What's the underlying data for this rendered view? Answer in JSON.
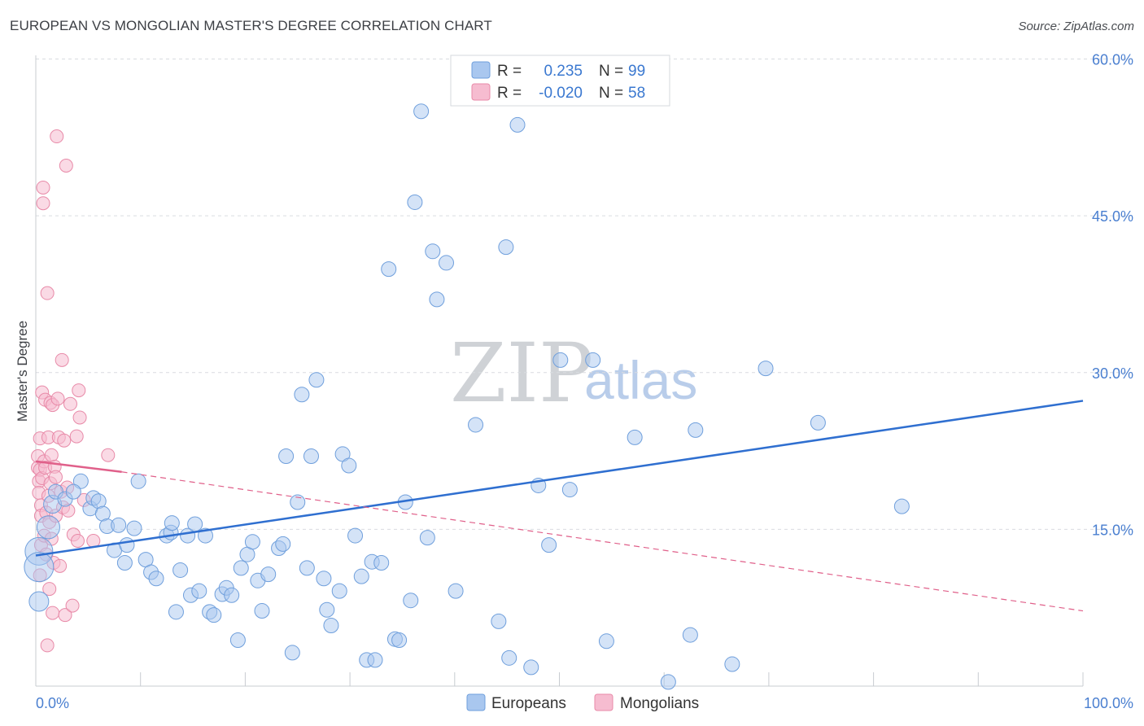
{
  "title": "EUROPEAN VS MONGOLIAN MASTER'S DEGREE CORRELATION CHART",
  "source": "Source: ZipAtlas.com",
  "colors": {
    "blue_fill": "#a9c7ef",
    "blue_stroke": "#6f9fdc",
    "blue_line": "#2f6fd0",
    "pink_fill": "#f6bcd0",
    "pink_stroke": "#e88aa8",
    "pink_line": "#e0608a",
    "grid": "#d9dce0",
    "tick_text": "#4a7fd0"
  },
  "legend": {
    "rows": [
      {
        "r_label": "R =",
        "r_value": "0.235",
        "n_label": "N =",
        "n_value": "99",
        "series": "Europeans"
      },
      {
        "r_label": "R =",
        "r_value": "-0.020",
        "n_label": "N =",
        "n_value": "58",
        "series": "Mongolians"
      }
    ]
  },
  "watermark": {
    "zip": "ZIP",
    "atlas": "atlas"
  },
  "chart_data": {
    "type": "scatter",
    "title": "EUROPEAN VS MONGOLIAN MASTER'S DEGREE CORRELATION CHART",
    "xlabel": "",
    "ylabel": "Master's Degree",
    "xlim": [
      0,
      100
    ],
    "ylim": [
      0,
      63
    ],
    "y_ticks": [
      15,
      30,
      45,
      60
    ],
    "y_tick_labels": [
      "15.0%",
      "30.0%",
      "45.0%",
      "60.0%"
    ],
    "x_tick_labels": [
      "0.0%",
      "100.0%"
    ],
    "legend_position": "bottom",
    "series": [
      {
        "name": "Europeans",
        "r": 0.235,
        "n": 99,
        "trend": {
          "x": [
            0,
            100
          ],
          "y": [
            12.5,
            27.3
          ],
          "style": "solid"
        },
        "points": [
          [
            0.3,
            12.9
          ],
          [
            0.3,
            11.4
          ],
          [
            0.3,
            8.1
          ],
          [
            1.2,
            15.2
          ],
          [
            1.6,
            17.4
          ],
          [
            1.9,
            18.6
          ],
          [
            2.8,
            17.9
          ],
          [
            4.3,
            19.6
          ],
          [
            3.6,
            18.6
          ],
          [
            5.2,
            17.0
          ],
          [
            5.5,
            18.0
          ],
          [
            6.0,
            17.7
          ],
          [
            6.4,
            16.5
          ],
          [
            6.8,
            15.3
          ],
          [
            7.5,
            13.0
          ],
          [
            7.9,
            15.4
          ],
          [
            8.5,
            11.8
          ],
          [
            8.7,
            13.5
          ],
          [
            9.4,
            15.1
          ],
          [
            9.8,
            19.6
          ],
          [
            10.5,
            12.1
          ],
          [
            11.0,
            10.9
          ],
          [
            11.5,
            10.3
          ],
          [
            12.5,
            14.4
          ],
          [
            12.9,
            14.7
          ],
          [
            13.0,
            15.6
          ],
          [
            13.4,
            7.1
          ],
          [
            13.8,
            11.1
          ],
          [
            14.5,
            14.4
          ],
          [
            14.8,
            8.7
          ],
          [
            15.2,
            15.5
          ],
          [
            15.6,
            9.1
          ],
          [
            16.2,
            14.4
          ],
          [
            16.6,
            7.1
          ],
          [
            17.0,
            6.8
          ],
          [
            17.8,
            8.8
          ],
          [
            18.2,
            9.4
          ],
          [
            18.7,
            8.7
          ],
          [
            19.3,
            4.4
          ],
          [
            19.6,
            11.3
          ],
          [
            20.2,
            12.6
          ],
          [
            20.7,
            13.8
          ],
          [
            21.2,
            10.1
          ],
          [
            21.6,
            7.2
          ],
          [
            22.2,
            10.7
          ],
          [
            23.2,
            13.2
          ],
          [
            23.6,
            13.6
          ],
          [
            23.9,
            22.0
          ],
          [
            24.5,
            3.2
          ],
          [
            25.0,
            17.6
          ],
          [
            25.4,
            27.9
          ],
          [
            25.9,
            11.3
          ],
          [
            26.3,
            22.0
          ],
          [
            26.8,
            29.3
          ],
          [
            27.5,
            10.3
          ],
          [
            27.8,
            7.3
          ],
          [
            28.2,
            5.8
          ],
          [
            29.0,
            9.1
          ],
          [
            29.3,
            22.2
          ],
          [
            29.9,
            21.1
          ],
          [
            30.5,
            14.4
          ],
          [
            31.1,
            10.5
          ],
          [
            31.6,
            2.5
          ],
          [
            32.1,
            11.9
          ],
          [
            32.4,
            2.5
          ],
          [
            33.0,
            11.8
          ],
          [
            33.7,
            39.9
          ],
          [
            34.3,
            4.5
          ],
          [
            34.7,
            4.4
          ],
          [
            35.3,
            17.6
          ],
          [
            35.8,
            8.2
          ],
          [
            36.2,
            46.3
          ],
          [
            36.8,
            55.0
          ],
          [
            37.4,
            14.2
          ],
          [
            37.9,
            41.6
          ],
          [
            38.3,
            37.0
          ],
          [
            39.2,
            40.5
          ],
          [
            40.1,
            9.1
          ],
          [
            42.0,
            25.0
          ],
          [
            44.2,
            6.2
          ],
          [
            44.9,
            42.0
          ],
          [
            45.2,
            2.7
          ],
          [
            46.0,
            53.7
          ],
          [
            47.3,
            1.8
          ],
          [
            48.0,
            19.2
          ],
          [
            49.0,
            13.5
          ],
          [
            50.1,
            31.2
          ],
          [
            51.0,
            18.8
          ],
          [
            53.2,
            31.2
          ],
          [
            54.2,
            58.5
          ],
          [
            54.5,
            4.3
          ],
          [
            57.2,
            23.8
          ],
          [
            60.4,
            0.4
          ],
          [
            62.5,
            4.9
          ],
          [
            63.0,
            24.5
          ],
          [
            66.5,
            2.1
          ],
          [
            69.7,
            30.4
          ],
          [
            74.7,
            25.2
          ],
          [
            82.7,
            17.2
          ]
        ]
      },
      {
        "name": "Mongolians",
        "r": -0.02,
        "n": 58,
        "trend_solid": {
          "x": [
            0,
            8.2
          ],
          "y": [
            21.5,
            20.5
          ]
        },
        "trend_dashed": {
          "x": [
            8.2,
            100
          ],
          "y": [
            20.5,
            7.2
          ]
        },
        "points": [
          [
            0.2,
            22.0
          ],
          [
            0.2,
            20.9
          ],
          [
            0.3,
            19.6
          ],
          [
            0.3,
            18.5
          ],
          [
            0.4,
            23.7
          ],
          [
            0.4,
            20.7
          ],
          [
            0.5,
            17.3
          ],
          [
            0.5,
            16.3
          ],
          [
            0.5,
            13.5
          ],
          [
            0.6,
            28.1
          ],
          [
            0.6,
            19.9
          ],
          [
            0.7,
            47.7
          ],
          [
            0.7,
            46.2
          ],
          [
            0.8,
            21.5
          ],
          [
            0.8,
            14.4
          ],
          [
            0.9,
            27.4
          ],
          [
            0.9,
            20.9
          ],
          [
            1.0,
            16.6
          ],
          [
            1.0,
            12.6
          ],
          [
            1.1,
            37.6
          ],
          [
            1.1,
            3.9
          ],
          [
            1.2,
            23.8
          ],
          [
            1.2,
            18.2
          ],
          [
            1.3,
            15.7
          ],
          [
            1.3,
            9.3
          ],
          [
            1.4,
            27.1
          ],
          [
            1.4,
            19.4
          ],
          [
            1.5,
            22.1
          ],
          [
            1.5,
            14.1
          ],
          [
            1.6,
            26.9
          ],
          [
            1.6,
            7.0
          ],
          [
            1.7,
            11.8
          ],
          [
            1.8,
            21.0
          ],
          [
            1.9,
            20.0
          ],
          [
            1.9,
            16.3
          ],
          [
            2.0,
            52.6
          ],
          [
            2.1,
            27.5
          ],
          [
            2.2,
            23.8
          ],
          [
            2.3,
            11.5
          ],
          [
            2.4,
            18.6
          ],
          [
            2.5,
            31.2
          ],
          [
            2.6,
            17.1
          ],
          [
            2.7,
            23.5
          ],
          [
            2.8,
            6.8
          ],
          [
            2.9,
            49.8
          ],
          [
            3.0,
            19.0
          ],
          [
            3.1,
            16.8
          ],
          [
            3.3,
            27.0
          ],
          [
            3.5,
            7.7
          ],
          [
            3.6,
            14.5
          ],
          [
            3.9,
            23.9
          ],
          [
            4.0,
            13.9
          ],
          [
            4.1,
            28.3
          ],
          [
            4.2,
            25.7
          ],
          [
            4.6,
            17.8
          ],
          [
            5.5,
            13.9
          ],
          [
            6.9,
            22.1
          ],
          [
            0.4,
            10.6
          ]
        ]
      }
    ]
  }
}
